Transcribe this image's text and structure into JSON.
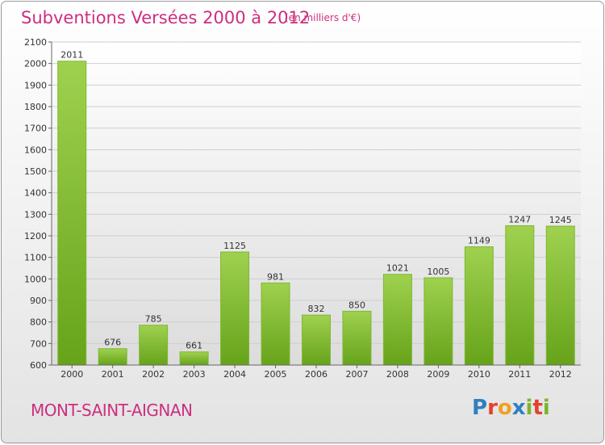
{
  "header": {
    "title": "Subventions Versées 2000 à 2012",
    "unit": "(en milliers d'€)"
  },
  "footer": {
    "commune": "MONT-SAINT-AIGNAN",
    "logo": {
      "letters": [
        "P",
        "r",
        "o",
        "x",
        "i",
        "t",
        "i"
      ],
      "colors": [
        "#2f7fc1",
        "#e4412d",
        "#f0a020",
        "#2f7fc1",
        "#7ab52e",
        "#e4412d",
        "#7ab52e"
      ]
    }
  },
  "colors": {
    "title": "#cc2f7f",
    "bar_light": "#9fd14f",
    "bar_dark": "#66a31a"
  },
  "chart_data": {
    "type": "bar",
    "title": "Subventions Versées 2000 à 2012",
    "subtitle": "(en milliers d'€)",
    "categories": [
      "2000",
      "2001",
      "2002",
      "2003",
      "2004",
      "2005",
      "2006",
      "2007",
      "2008",
      "2009",
      "2010",
      "2011",
      "2012"
    ],
    "values": [
      2011,
      676,
      785,
      661,
      1125,
      981,
      832,
      850,
      1021,
      1005,
      1149,
      1247,
      1245
    ],
    "ylim": [
      600,
      2100
    ],
    "yticks": [
      600,
      700,
      800,
      900,
      1000,
      1100,
      1200,
      1300,
      1400,
      1500,
      1600,
      1700,
      1800,
      1900,
      2000,
      2100
    ],
    "grid": true,
    "data_labels": true,
    "legend": "none"
  }
}
